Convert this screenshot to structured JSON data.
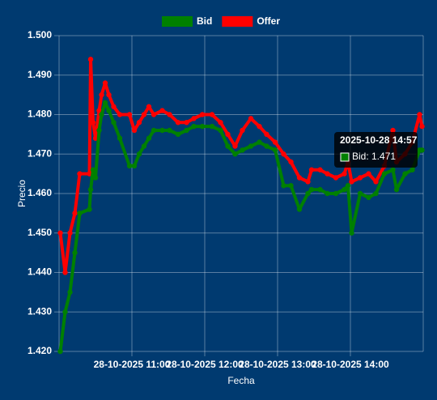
{
  "chart_data": {
    "type": "line",
    "legend": "top",
    "grid": true,
    "x_label": "Fecha",
    "y_label": "Precio",
    "x": [
      "2025-10-28 10:01",
      "2025-10-28 10:05",
      "2025-10-28 10:09",
      "2025-10-28 10:13",
      "2025-10-28 10:17",
      "2025-10-28 10:25",
      "2025-10-28 10:26",
      "2025-10-28 10:28",
      "2025-10-28 10:30",
      "2025-10-28 10:33",
      "2025-10-28 10:35",
      "2025-10-28 10:38",
      "2025-10-28 10:41",
      "2025-10-28 10:45",
      "2025-10-28 10:50",
      "2025-10-28 10:58",
      "2025-10-28 11:02",
      "2025-10-28 11:06",
      "2025-10-28 11:10",
      "2025-10-28 11:14",
      "2025-10-28 11:18",
      "2025-10-28 11:25",
      "2025-10-28 11:31",
      "2025-10-28 11:38",
      "2025-10-28 11:45",
      "2025-10-28 11:51",
      "2025-10-28 11:58",
      "2025-10-28 12:06",
      "2025-10-28 12:13",
      "2025-10-28 12:19",
      "2025-10-28 12:25",
      "2025-10-28 12:31",
      "2025-10-28 12:38",
      "2025-10-28 12:45",
      "2025-10-28 12:51",
      "2025-10-28 12:58",
      "2025-10-28 13:05",
      "2025-10-28 13:11",
      "2025-10-28 13:18",
      "2025-10-28 13:25",
      "2025-10-28 13:28",
      "2025-10-28 13:35",
      "2025-10-28 13:41",
      "2025-10-28 13:48",
      "2025-10-28 13:55",
      "2025-10-28 13:58",
      "2025-10-28 14:01",
      "2025-10-28 14:08",
      "2025-10-28 14:15",
      "2025-10-28 14:21",
      "2025-10-28 14:28",
      "2025-10-28 14:35",
      "2025-10-28 14:38",
      "2025-10-28 14:45",
      "2025-10-28 14:51",
      "2025-10-28 14:57",
      "2025-10-28 14:59"
    ],
    "series": [
      {
        "name": "Bid",
        "color": "#008000",
        "values": [
          1.42,
          1.43,
          1.435,
          1.445,
          1.455,
          1.456,
          1.461,
          1.466,
          1.464,
          1.476,
          1.48,
          1.483,
          1.481,
          1.478,
          1.474,
          1.467,
          1.467,
          1.47,
          1.472,
          1.474,
          1.476,
          1.476,
          1.476,
          1.475,
          1.476,
          1.477,
          1.477,
          1.477,
          1.476,
          1.472,
          1.47,
          1.471,
          1.472,
          1.473,
          1.472,
          1.471,
          1.462,
          1.462,
          1.456,
          1.46,
          1.461,
          1.461,
          1.46,
          1.46,
          1.461,
          1.462,
          1.45,
          1.46,
          1.459,
          1.46,
          1.465,
          1.466,
          1.461,
          1.465,
          1.466,
          1.471,
          1.471
        ]
      },
      {
        "name": "Offer",
        "color": "#ff0000",
        "values": [
          1.45,
          1.44,
          1.45,
          1.455,
          1.465,
          1.465,
          1.494,
          1.478,
          1.474,
          1.481,
          1.485,
          1.488,
          1.485,
          1.482,
          1.48,
          1.48,
          1.476,
          1.478,
          1.48,
          1.482,
          1.48,
          1.481,
          1.48,
          1.478,
          1.478,
          1.479,
          1.48,
          1.48,
          1.478,
          1.475,
          1.472,
          1.476,
          1.479,
          1.477,
          1.475,
          1.473,
          1.47,
          1.468,
          1.464,
          1.463,
          1.466,
          1.466,
          1.465,
          1.464,
          1.465,
          1.468,
          1.463,
          1.464,
          1.465,
          1.463,
          1.467,
          1.476,
          1.468,
          1.47,
          1.473,
          1.48,
          1.477
        ]
      }
    ],
    "xlim": [
      "2025-10-28 10:00",
      "2025-10-28 15:00"
    ],
    "xticks": [
      {
        "value": "2025-10-28 11:00",
        "label": "28-10-2025 11:00"
      },
      {
        "value": "2025-10-28 12:00",
        "label": "28-10-2025 12:00"
      },
      {
        "value": "2025-10-28 13:00",
        "label": "28-10-2025 13:00"
      },
      {
        "value": "2025-10-28 14:00",
        "label": "28-10-2025 14:00"
      }
    ],
    "ylim": [
      1.42,
      1.5
    ],
    "yticks": [
      {
        "value": 1.42,
        "label": "1.420"
      },
      {
        "value": 1.43,
        "label": "1.430"
      },
      {
        "value": 1.44,
        "label": "1.440"
      },
      {
        "value": 1.45,
        "label": "1.450"
      },
      {
        "value": 1.46,
        "label": "1.460"
      },
      {
        "value": 1.47,
        "label": "1.470"
      },
      {
        "value": 1.48,
        "label": "1.480"
      },
      {
        "value": 1.49,
        "label": "1.490"
      },
      {
        "value": 1.5,
        "label": "1.500"
      }
    ],
    "tooltip_label": "Bid: 1.471"
  }
}
